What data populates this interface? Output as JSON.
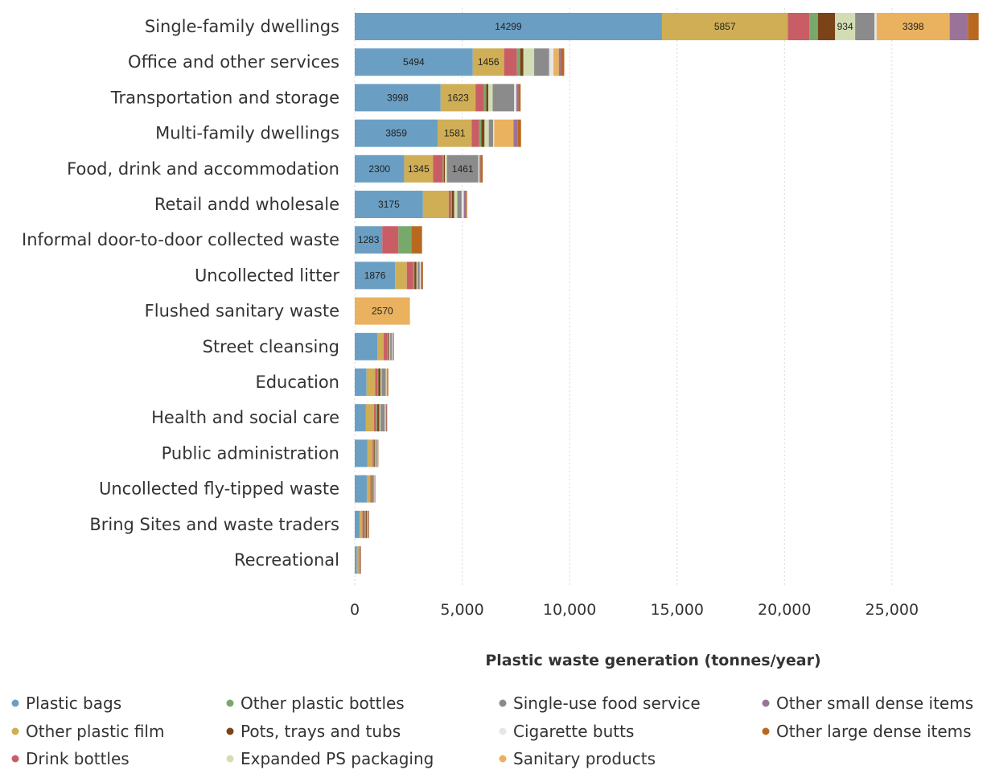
{
  "chart_data": {
    "type": "bar",
    "orientation": "horizontal",
    "stacked": true,
    "title": "",
    "xlabel": "Plastic waste generation (tonnes/year)",
    "ylabel": "",
    "xlim": [
      0,
      29200
    ],
    "xticks": [
      0,
      5000,
      10000,
      15000,
      20000,
      25000
    ],
    "xtick_labels": [
      "0",
      "5,000",
      "10,000",
      "15,000",
      "20,000",
      "25,000"
    ],
    "grid": "vertical dotted",
    "legend_position": "bottom",
    "categories": [
      "Single-family dwellings",
      "Office and other services",
      "Transportation and storage",
      "Multi-family dwellings",
      "Food, drink and accommodation",
      "Retail andd wholesale",
      "Informal door-to-door collected waste",
      "Uncollected litter",
      "Flushed sanitary waste",
      "Street cleansing",
      "Education",
      "Health and social care",
      "Public administration",
      "Uncollected fly-tipped waste",
      "Bring Sites and waste traders",
      "Recreational"
    ],
    "series": [
      {
        "name": "Plastic bags",
        "color": "#6a9fc3",
        "values": [
          14299,
          5494,
          3998,
          3859,
          2300,
          3175,
          1283,
          1876,
          0,
          1050,
          550,
          520,
          580,
          560,
          230,
          100
        ],
        "labels": [
          "14299",
          "5494",
          "3998",
          "3859",
          "2300",
          "3175",
          "1283",
          "1876",
          "",
          "",
          "",
          "",
          "",
          "",
          "",
          ""
        ]
      },
      {
        "name": "Other plastic film",
        "color": "#cfae55",
        "values": [
          5857,
          1456,
          1623,
          1581,
          1345,
          1200,
          0,
          550,
          0,
          300,
          400,
          380,
          250,
          170,
          130,
          80
        ],
        "labels": [
          "5857",
          "1456",
          "1623",
          "1581",
          "1345",
          "",
          "",
          "",
          "",
          "",
          "",
          "",
          "",
          "",
          "",
          ""
        ]
      },
      {
        "name": "Drink bottles",
        "color": "#c95d65",
        "values": [
          1000,
          600,
          400,
          350,
          450,
          100,
          750,
          300,
          0,
          150,
          100,
          100,
          50,
          50,
          100,
          20
        ],
        "labels": [
          "",
          "",
          "",
          "",
          "",
          "",
          "",
          "",
          "",
          "",
          "",
          "",
          "",
          "",
          "",
          ""
        ]
      },
      {
        "name": "Other plastic bottles",
        "color": "#78a96b",
        "values": [
          400,
          150,
          100,
          100,
          50,
          50,
          600,
          50,
          0,
          50,
          50,
          50,
          30,
          30,
          60,
          15
        ],
        "labels": [
          "",
          "",
          "",
          "",
          "",
          "",
          "",
          "",
          "",
          "",
          "",
          "",
          "",
          "",
          "",
          ""
        ]
      },
      {
        "name": "Pots, trays and tubs",
        "color": "#7b4318",
        "values": [
          800,
          150,
          100,
          150,
          50,
          100,
          0,
          100,
          0,
          50,
          100,
          100,
          40,
          40,
          40,
          15
        ],
        "labels": [
          "",
          "",
          "",
          "",
          "",
          "",
          "",
          "",
          "",
          "",
          "",
          "",
          "",
          "",
          "",
          ""
        ]
      },
      {
        "name": "Expanded PS packaging",
        "color": "#d3ddb4",
        "values": [
          934,
          500,
          200,
          200,
          100,
          150,
          0,
          50,
          0,
          50,
          50,
          50,
          30,
          20,
          20,
          10
        ],
        "labels": [
          "934",
          "",
          "",
          "",
          "",
          "",
          "",
          "",
          "",
          "",
          "",
          "",
          "",
          "",
          "",
          ""
        ]
      },
      {
        "name": "Single-use food service",
        "color": "#8b8b8b",
        "values": [
          900,
          700,
          1000,
          200,
          1461,
          200,
          0,
          100,
          0,
          80,
          200,
          200,
          60,
          30,
          30,
          20
        ],
        "labels": [
          "",
          "",
          "",
          "",
          "1461",
          "",
          "",
          "",
          "",
          "",
          "",
          "",
          "",
          "",
          "",
          ""
        ]
      },
      {
        "name": "Cigarette butts",
        "color": "#e6e6e6",
        "values": [
          100,
          200,
          100,
          50,
          50,
          100,
          0,
          50,
          0,
          30,
          30,
          30,
          20,
          20,
          10,
          10
        ],
        "labels": [
          "",
          "",
          "",
          "",
          "",
          "",
          "",
          "",
          "",
          "",
          "",
          "",
          "",
          "",
          "",
          ""
        ]
      },
      {
        "name": "Sanitary products",
        "color": "#eab25e",
        "values": [
          3398,
          250,
          0,
          900,
          0,
          0,
          0,
          0,
          2570,
          0,
          20,
          20,
          0,
          0,
          0,
          0
        ],
        "labels": [
          "3398",
          "",
          "",
          "",
          "",
          "",
          "",
          "",
          "2570",
          "",
          "",
          "",
          "",
          "",
          "",
          ""
        ]
      },
      {
        "name": "Other small dense items",
        "color": "#9b7399",
        "values": [
          850,
          100,
          100,
          200,
          50,
          100,
          0,
          50,
          0,
          30,
          30,
          30,
          20,
          20,
          20,
          10
        ],
        "labels": [
          "",
          "",
          "",
          "",
          "",
          "",
          "",
          "",
          "",
          "",
          "",
          "",
          "",
          "",
          "",
          ""
        ]
      },
      {
        "name": "Other large dense items",
        "color": "#b9691f",
        "values": [
          500,
          150,
          100,
          150,
          100,
          50,
          500,
          50,
          0,
          30,
          30,
          30,
          20,
          20,
          30,
          10
        ],
        "labels": [
          "",
          "",
          "",
          "",
          "",
          "",
          "",
          "",
          "",
          "",
          "",
          "",
          "",
          "",
          "",
          ""
        ]
      }
    ]
  }
}
